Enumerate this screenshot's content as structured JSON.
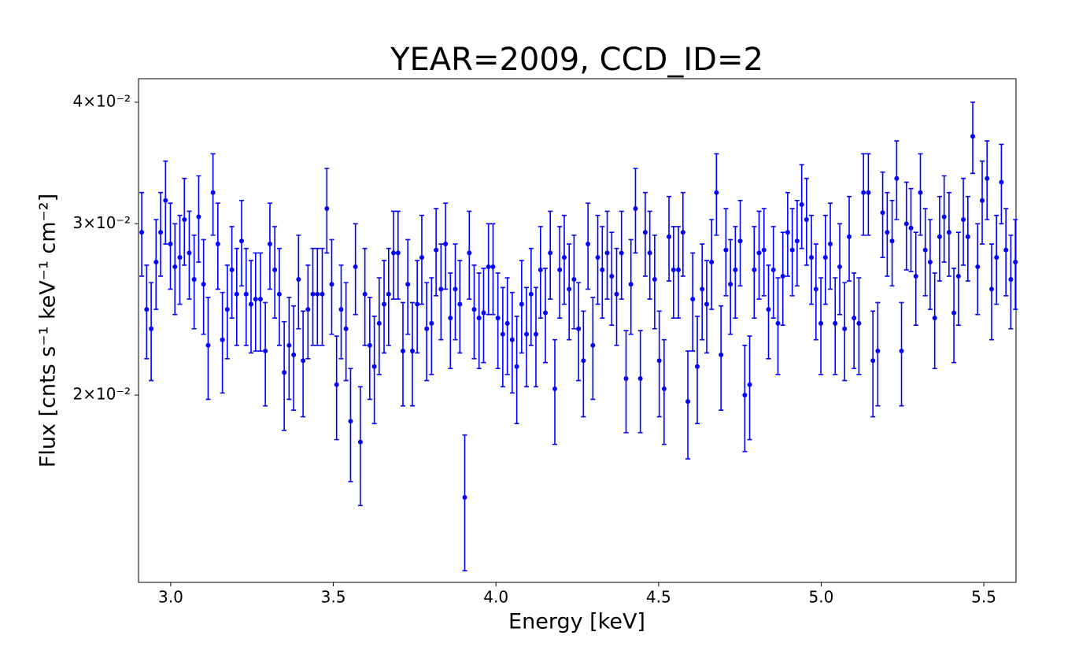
{
  "chart_data": {
    "type": "errorbar",
    "title": "YEAR=2009, CCD_ID=2",
    "xlabel": "Energy [keV]",
    "ylabel": "Flux [cnts s⁻¹ keV⁻¹ cm⁻²]",
    "xlim": [
      2.901,
      5.599
    ],
    "ylim": [
      0.01284,
      0.04229
    ],
    "yscale": "log",
    "xticks": [
      {
        "value": 3,
        "label": "3.0"
      },
      3.5,
      {
        "value": 4,
        "label": "4.0"
      },
      4.5,
      {
        "value": 5,
        "label": "5.0"
      },
      5.5
    ],
    "yticks": [
      {
        "value": 0.02,
        "label": "2×10⁻²"
      },
      {
        "value": 0.03,
        "label": "3×10⁻²"
      },
      {
        "value": 0.04,
        "label": "4×10⁻²"
      }
    ],
    "grid": false,
    "series": [
      {
        "color": "#0000ff",
        "x": [
          2.911,
          2.926,
          2.94,
          2.955,
          2.969,
          2.984,
          2.999,
          3.013,
          3.028,
          3.042,
          3.057,
          3.072,
          3.086,
          3.101,
          3.115,
          3.13,
          3.145,
          3.159,
          3.174,
          3.188,
          3.203,
          3.218,
          3.232,
          3.247,
          3.261,
          3.276,
          3.291,
          3.305,
          3.32,
          3.334,
          3.349,
          3.364,
          3.378,
          3.393,
          3.407,
          3.422,
          3.437,
          3.451,
          3.466,
          3.48,
          3.495,
          3.51,
          3.524,
          3.539,
          3.553,
          3.568,
          3.583,
          3.597,
          3.612,
          3.626,
          3.641,
          3.656,
          3.67,
          3.685,
          3.699,
          3.714,
          3.729,
          3.743,
          3.758,
          3.772,
          3.787,
          3.802,
          3.816,
          3.831,
          3.845,
          3.86,
          3.875,
          3.889,
          3.904,
          3.918,
          3.933,
          3.948,
          3.962,
          3.977,
          3.991,
          4.006,
          4.021,
          4.035,
          4.05,
          4.064,
          4.079,
          4.094,
          4.108,
          4.123,
          4.137,
          4.152,
          4.167,
          4.181,
          4.196,
          4.21,
          4.225,
          4.24,
          4.254,
          4.269,
          4.283,
          4.298,
          4.313,
          4.327,
          4.342,
          4.356,
          4.371,
          4.386,
          4.4,
          4.415,
          4.429,
          4.444,
          4.459,
          4.473,
          4.488,
          4.502,
          4.517,
          4.532,
          4.546,
          4.561,
          4.575,
          4.59,
          4.605,
          4.619,
          4.634,
          4.648,
          4.663,
          4.678,
          4.692,
          4.707,
          4.721,
          4.736,
          4.751,
          4.765,
          4.78,
          4.794,
          4.809,
          4.824,
          4.838,
          4.853,
          4.867,
          4.882,
          4.897,
          4.911,
          4.926,
          4.94,
          4.955,
          4.97,
          4.984,
          4.999,
          5.013,
          5.028,
          5.043,
          5.057,
          5.072,
          5.086,
          5.101,
          5.116,
          5.13,
          5.145,
          5.159,
          5.174,
          5.189,
          5.203,
          5.218,
          5.232,
          5.247,
          5.262,
          5.276,
          5.291,
          5.305,
          5.32,
          5.335,
          5.349,
          5.364,
          5.378,
          5.393,
          5.408,
          5.422,
          5.437,
          5.451,
          5.466,
          5.481,
          5.495,
          5.51,
          5.524,
          5.539,
          5.554,
          5.568,
          5.583,
          5.597
        ],
        "values": [
          0.0294,
          0.0245,
          0.0234,
          0.0274,
          0.0294,
          0.0317,
          0.0286,
          0.0271,
          0.0277,
          0.0303,
          0.028,
          0.0263,
          0.0305,
          0.026,
          0.0225,
          0.0323,
          0.0286,
          0.0228,
          0.0245,
          0.0269,
          0.0254,
          0.0288,
          0.0254,
          0.0248,
          0.0251,
          0.0251,
          0.0222,
          0.0286,
          0.0269,
          0.0254,
          0.0211,
          0.0225,
          0.022,
          0.0263,
          0.0217,
          0.0245,
          0.0254,
          0.0254,
          0.0254,
          0.0311,
          0.026,
          0.0205,
          0.0245,
          0.0234,
          0.0188,
          0.0271,
          0.0179,
          0.0254,
          0.0225,
          0.0214,
          0.0237,
          0.0248,
          0.0254,
          0.028,
          0.028,
          0.0222,
          0.026,
          0.0222,
          0.0248,
          0.0277,
          0.0234,
          0.0237,
          0.0282,
          0.0257,
          0.0286,
          0.024,
          0.0257,
          0.0248,
          0.0157,
          0.028,
          0.0245,
          0.024,
          0.0243,
          0.0271,
          0.0271,
          0.024,
          0.0231,
          0.0237,
          0.0228,
          0.0214,
          0.0248,
          0.0231,
          0.0254,
          0.0231,
          0.0269,
          0.0243,
          0.028,
          0.0203,
          0.0269,
          0.0277,
          0.0257,
          0.0263,
          0.0234,
          0.0217,
          0.0286,
          0.0225,
          0.0277,
          0.0269,
          0.028,
          0.0265,
          0.0254,
          0.028,
          0.0208,
          0.026,
          0.0311,
          0.0208,
          0.0294,
          0.028,
          0.0263,
          0.0217,
          0.0203,
          0.0291,
          0.0269,
          0.0269,
          0.0294,
          0.0197,
          0.0251,
          0.0214,
          0.0257,
          0.0248,
          0.0274,
          0.0323,
          0.022,
          0.0282,
          0.026,
          0.0269,
          0.0288,
          0.02,
          0.0205,
          0.0269,
          0.028,
          0.0282,
          0.0245,
          0.0269,
          0.0237,
          0.0265,
          0.0294,
          0.0282,
          0.0288,
          0.0314,
          0.0303,
          0.0277,
          0.0257,
          0.0237,
          0.0277,
          0.0286,
          0.0237,
          0.0271,
          0.0234,
          0.0291,
          0.024,
          0.0237,
          0.0323,
          0.0323,
          0.0217,
          0.0222,
          0.0308,
          0.0294,
          0.0288,
          0.0334,
          0.0222,
          0.03,
          0.0297,
          0.0265,
          0.0323,
          0.0282,
          0.0274,
          0.024,
          0.0291,
          0.0305,
          0.0294,
          0.0243,
          0.0265,
          0.0303,
          0.0291,
          0.0369,
          0.0271,
          0.0317,
          0.0334,
          0.0257,
          0.0277,
          0.0331,
          0.0282,
          0.0263,
          0.0274
        ],
        "yerr": [
          0.0029,
          0.0027,
          0.0027,
          0.0029,
          0.0029,
          0.0031,
          0.0029,
          0.0029,
          0.0029,
          0.0031,
          0.0029,
          0.0029,
          0.0031,
          0.0029,
          0.0027,
          0.0031,
          0.0029,
          0.0027,
          0.0027,
          0.0029,
          0.0029,
          0.0029,
          0.0029,
          0.0027,
          0.0029,
          0.0029,
          0.0027,
          0.0029,
          0.0029,
          0.0029,
          0.0027,
          0.0027,
          0.0027,
          0.0029,
          0.0027,
          0.0027,
          0.0029,
          0.0029,
          0.0029,
          0.0031,
          0.0029,
          0.0025,
          0.0027,
          0.0027,
          0.0025,
          0.0029,
          0.0025,
          0.0029,
          0.0027,
          0.0027,
          0.0027,
          0.0027,
          0.0029,
          0.0029,
          0.0029,
          0.0027,
          0.0029,
          0.0027,
          0.0027,
          0.0029,
          0.0027,
          0.0027,
          0.0029,
          0.0029,
          0.0029,
          0.0027,
          0.0029,
          0.0027,
          0.0025,
          0.0029,
          0.0027,
          0.0027,
          0.0027,
          0.0029,
          0.0029,
          0.0027,
          0.0027,
          0.0027,
          0.0027,
          0.0027,
          0.0027,
          0.0027,
          0.0029,
          0.0027,
          0.0029,
          0.0027,
          0.0029,
          0.0025,
          0.0029,
          0.0029,
          0.0029,
          0.0029,
          0.0027,
          0.0027,
          0.0029,
          0.0027,
          0.0029,
          0.0029,
          0.0029,
          0.0029,
          0.0029,
          0.0029,
          0.0025,
          0.0029,
          0.0031,
          0.0025,
          0.0029,
          0.0029,
          0.0029,
          0.0027,
          0.0025,
          0.0029,
          0.0029,
          0.0029,
          0.0029,
          0.0025,
          0.0029,
          0.0027,
          0.0029,
          0.0027,
          0.0029,
          0.0031,
          0.0027,
          0.0029,
          0.0029,
          0.0029,
          0.0029,
          0.0025,
          0.0025,
          0.0029,
          0.0029,
          0.0029,
          0.0027,
          0.0029,
          0.0027,
          0.0029,
          0.0029,
          0.0029,
          0.0029,
          0.0031,
          0.0031,
          0.0029,
          0.0029,
          0.0027,
          0.0029,
          0.0029,
          0.0027,
          0.0029,
          0.0027,
          0.0029,
          0.0027,
          0.0027,
          0.0031,
          0.0031,
          0.0027,
          0.0027,
          0.0031,
          0.0029,
          0.0029,
          0.0031,
          0.0027,
          0.0031,
          0.0029,
          0.0029,
          0.0031,
          0.0029,
          0.0029,
          0.0027,
          0.0029,
          0.0031,
          0.0029,
          0.0027,
          0.0029,
          0.0031,
          0.0029,
          0.0031,
          0.0029,
          0.0031,
          0.0031,
          0.0029,
          0.0029,
          0.0031,
          0.0029,
          0.0029,
          0.0029
        ]
      }
    ]
  }
}
